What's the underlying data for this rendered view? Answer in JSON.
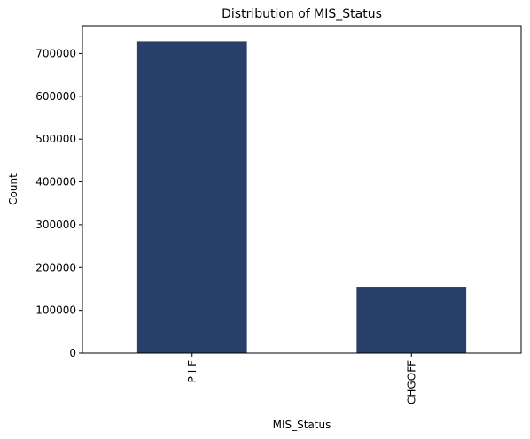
{
  "chart_data": {
    "type": "bar",
    "title": "Distribution of MIS_Status",
    "xlabel": "MIS_Status",
    "ylabel": "Count",
    "categories": [
      "P I F",
      "CHGOFF"
    ],
    "values": [
      729000,
      155000
    ],
    "ylim": [
      0,
      765000
    ],
    "yticks": [
      0,
      100000,
      200000,
      300000,
      400000,
      500000,
      600000,
      700000
    ],
    "ytick_labels": [
      "0",
      "100000",
      "200000",
      "300000",
      "400000",
      "500000",
      "600000",
      "700000"
    ],
    "bar_color": "#283f69",
    "grid": false,
    "legend": "none",
    "xtick_rotation": "vertical"
  }
}
